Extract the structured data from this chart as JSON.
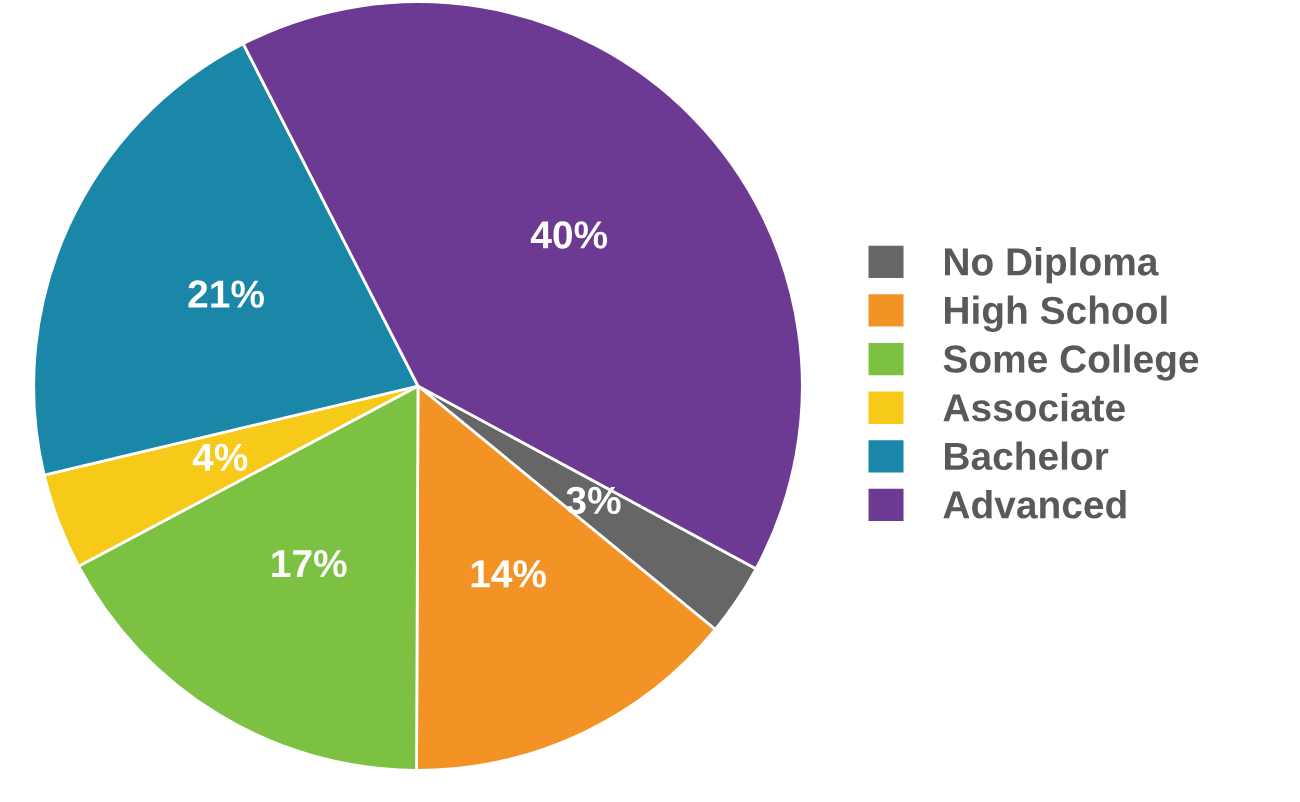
{
  "chart_data": {
    "type": "pie",
    "categories": [
      "No Diploma",
      "High School",
      "Some College",
      "Associate",
      "Bachelor",
      "Advanced"
    ],
    "values": [
      3,
      14,
      17,
      4,
      21,
      40
    ],
    "colors": [
      "#666666",
      "#f39325",
      "#7dc142",
      "#f7c919",
      "#1a86a8",
      "#6c3a92"
    ],
    "value_labels": [
      "3%",
      "14%",
      "17%",
      "4%",
      "21%",
      "40%"
    ],
    "legend": "right"
  }
}
